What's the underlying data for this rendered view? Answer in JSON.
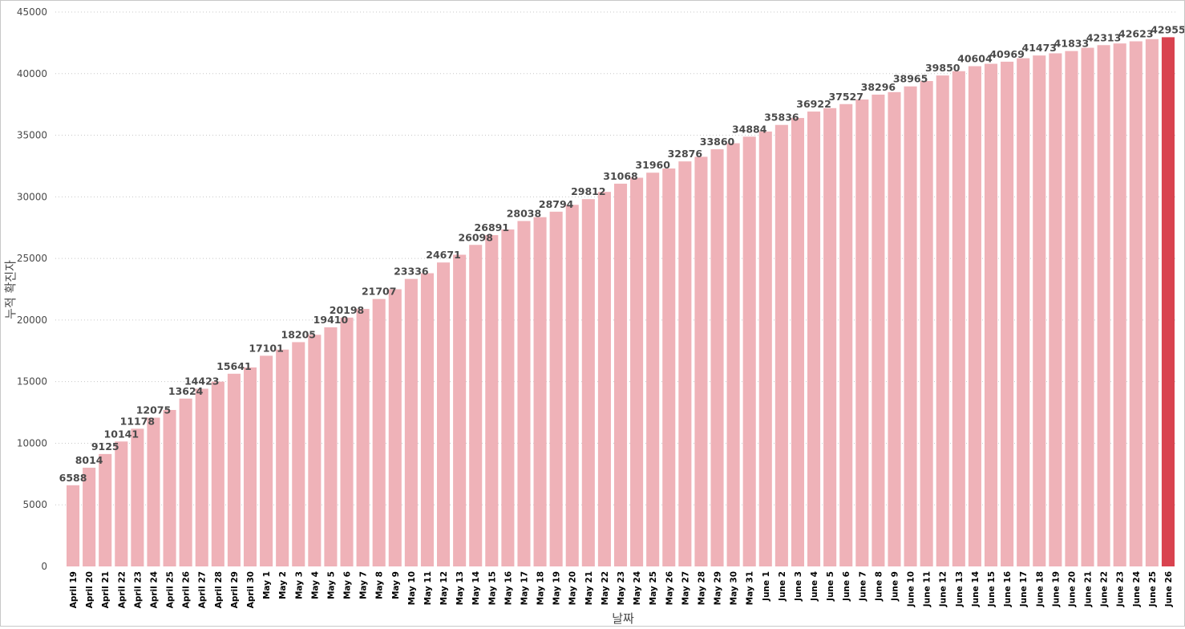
{
  "chart_data": {
    "type": "bar",
    "xlabel": "날짜",
    "ylabel": "누적 확진자",
    "ylim": [
      0,
      45000
    ],
    "yticks": [
      0,
      5000,
      10000,
      15000,
      20000,
      25000,
      30000,
      35000,
      40000,
      45000
    ],
    "grid": true,
    "colors": {
      "bar": "#efb2b8",
      "highlight": "#d9434f",
      "grid": "#c8c8c8"
    },
    "highlight_index": 68,
    "categories": [
      "April 19",
      "April 20",
      "April 21",
      "April 22",
      "April 23",
      "April 24",
      "April 25",
      "April 26",
      "April 27",
      "April 28",
      "April 29",
      "April 30",
      "May 1",
      "May 2",
      "May 3",
      "May 4",
      "May 5",
      "May 6",
      "May 7",
      "May 8",
      "May 9",
      "May 10",
      "May 11",
      "May 12",
      "May 13",
      "May 14",
      "May 15",
      "May 16",
      "May 17",
      "May 18",
      "May 19",
      "May 20",
      "May 21",
      "May 22",
      "May 23",
      "May 24",
      "May 25",
      "May 26",
      "May 27",
      "May 28",
      "May 29",
      "May 30",
      "May 31",
      "June 1",
      "June 2",
      "June 3",
      "June 4",
      "June 5",
      "June 6",
      "June 7",
      "June 8",
      "June 9",
      "June 10",
      "June 11",
      "June 12",
      "June 13",
      "June 14",
      "June 15",
      "June 16",
      "June 17",
      "June 18",
      "June 19",
      "June 20",
      "June 21",
      "June 22",
      "June 23",
      "June 24",
      "June 25",
      "June 26"
    ],
    "values": [
      6588,
      8014,
      9125,
      10141,
      11178,
      12075,
      12700,
      13624,
      14423,
      15000,
      15641,
      16150,
      17101,
      17600,
      18205,
      18800,
      19410,
      20198,
      20900,
      21707,
      22500,
      23336,
      23800,
      24671,
      25300,
      26098,
      26891,
      27350,
      28038,
      28350,
      28794,
      29350,
      29812,
      30400,
      31068,
      31550,
      31960,
      32300,
      32876,
      33250,
      33860,
      34350,
      34884,
      35300,
      35836,
      36400,
      36922,
      37200,
      37527,
      37900,
      38296,
      38500,
      38965,
      39400,
      39850,
      40200,
      40604,
      40800,
      40969,
      41250,
      41473,
      41650,
      41833,
      42100,
      42313,
      42450,
      42623,
      42800,
      42955
    ],
    "data_labels": {
      "0": "6588",
      "1": "8014",
      "2": "9125",
      "3": "10141",
      "4": "11178",
      "5": "12075",
      "7": "13624",
      "8": "14423",
      "10": "15641",
      "12": "17101",
      "14": "18205",
      "16": "19410",
      "17": "20198",
      "19": "21707",
      "21": "23336",
      "23": "24671",
      "25": "26098",
      "26": "26891",
      "28": "28038",
      "30": "28794",
      "32": "29812",
      "34": "31068",
      "36": "31960",
      "38": "32876",
      "40": "33860",
      "42": "34884",
      "44": "35836",
      "46": "36922",
      "48": "37527",
      "50": "38296",
      "52": "38965",
      "54": "39850",
      "56": "40604",
      "58": "40969",
      "60": "41473",
      "62": "41833",
      "64": "42313",
      "66": "42623",
      "68": "42955"
    }
  }
}
